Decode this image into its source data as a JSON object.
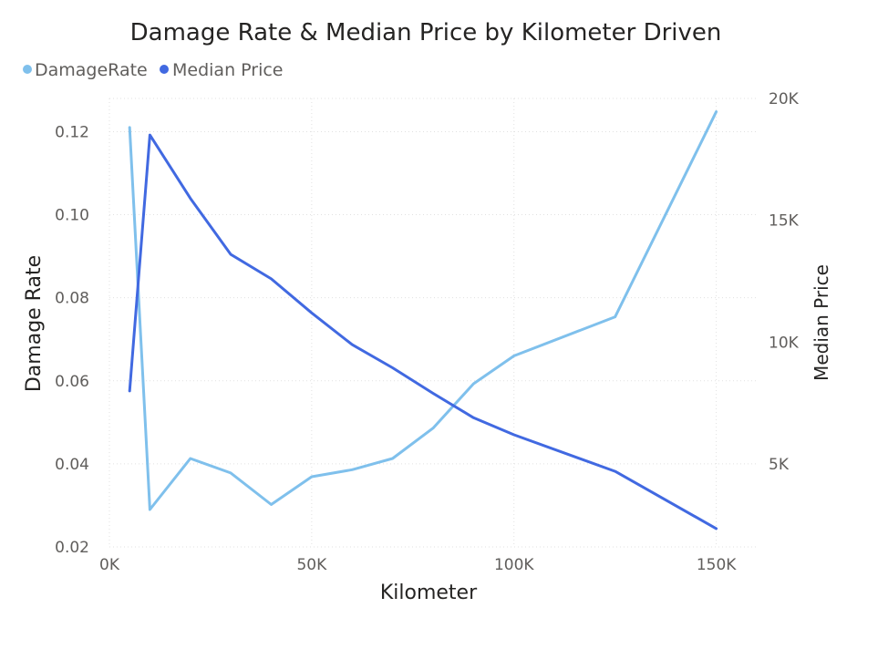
{
  "chart_data": {
    "type": "line",
    "title": "Damage Rate & Median Price by Kilometer Driven",
    "xlabel": "Kilometer",
    "ylabel_left": "Damage Rate",
    "ylabel_right": "Median Price",
    "x": [
      5000,
      10000,
      20000,
      30000,
      40000,
      50000,
      60000,
      70000,
      80000,
      90000,
      100000,
      125000,
      150000
    ],
    "xlim": [
      0,
      160000
    ],
    "x_ticks": [
      0,
      50000,
      100000,
      150000
    ],
    "x_tick_labels": [
      "0K",
      "50K",
      "100K",
      "150K"
    ],
    "ylim_left": [
      0.02,
      0.128
    ],
    "y_ticks_left": [
      0.02,
      0.04,
      0.06,
      0.08,
      0.1,
      0.12
    ],
    "y_tick_labels_left": [
      "0.02",
      "0.04",
      "0.06",
      "0.08",
      "0.10",
      "0.12"
    ],
    "ylim_right": [
      1600,
      20000
    ],
    "y_ticks_right": [
      5000,
      10000,
      15000,
      20000
    ],
    "y_tick_labels_right": [
      "5K",
      "10K",
      "15K",
      "20K"
    ],
    "grid": true,
    "legend_position": "top-left",
    "series": [
      {
        "name": "DamageRate",
        "axis": "left",
        "color": "#7fc0ec",
        "values": [
          0.121,
          0.029,
          0.0413,
          0.0378,
          0.0302,
          0.0369,
          0.0386,
          0.0413,
          0.0486,
          0.0593,
          0.066,
          0.0754,
          0.1248
        ]
      },
      {
        "name": "Median Price",
        "axis": "right",
        "color": "#4169e1",
        "values": [
          8000,
          18500,
          15900,
          13600,
          12600,
          11200,
          9900,
          8950,
          7900,
          6900,
          6200,
          4700,
          2350
        ]
      }
    ]
  }
}
